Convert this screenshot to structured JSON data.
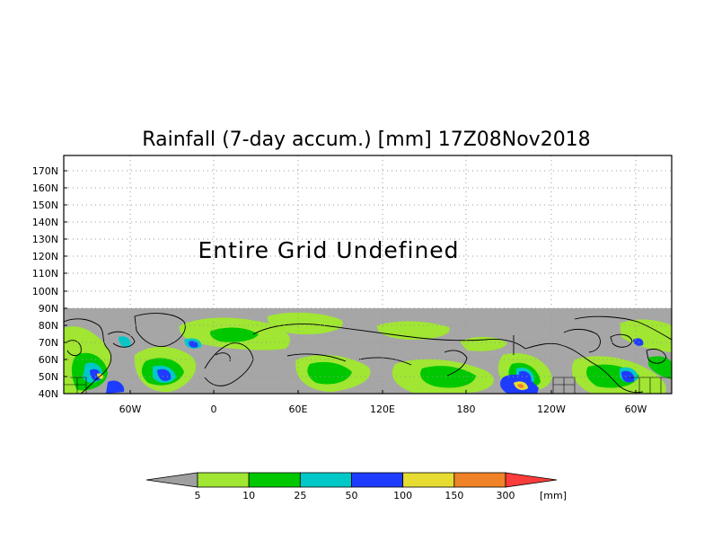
{
  "title": "Rainfall (7-day accum.) [mm] 17Z08Nov2018",
  "overlay_text": "Entire Grid Undefined",
  "y_axis": {
    "labels": [
      "170N",
      "160N",
      "150N",
      "140N",
      "130N",
      "120N",
      "110N",
      "100N",
      "90N",
      "80N",
      "70N",
      "60N",
      "50N",
      "40N"
    ]
  },
  "x_axis": {
    "labels": [
      "60W",
      "0",
      "60E",
      "120E",
      "180",
      "120W",
      "60W"
    ]
  },
  "colorbar": {
    "labels": [
      "5",
      "10",
      "25",
      "50",
      "100",
      "150",
      "300"
    ],
    "unit": "[mm]",
    "colors": {
      "below": "#a0a0a0",
      "bins": [
        "#a0e632",
        "#00c800",
        "#00c8c8",
        "#1e3cff",
        "#e6dc32",
        "#f08228",
        "#fa3c3c"
      ]
    }
  },
  "colors": {
    "undefined_fill": "#a6a6a6",
    "frame": "#000000",
    "grid": "#9a9a9a"
  }
}
